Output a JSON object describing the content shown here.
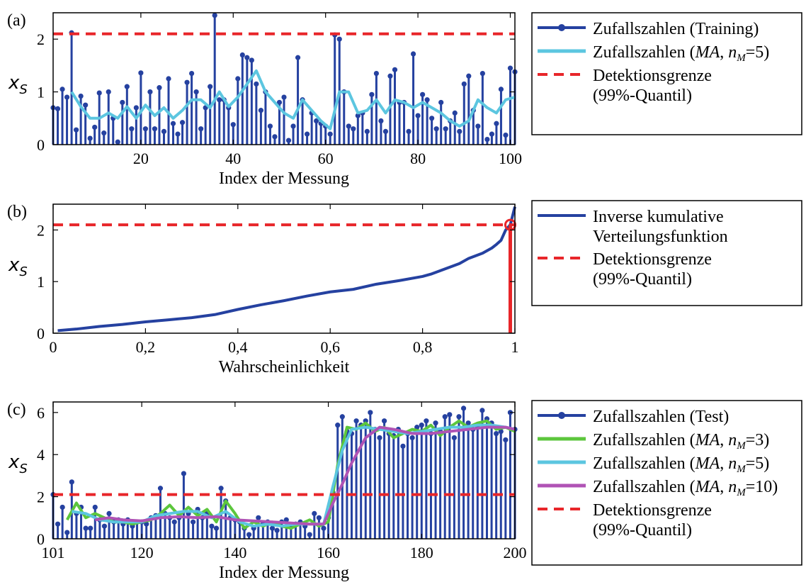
{
  "colors": {
    "stem": "#2541a0",
    "ma5": "#5cc6e0",
    "ma3": "#5cc63c",
    "ma10": "#b053b5",
    "threshold": "#e8262a"
  },
  "chart_data": [
    {
      "type": "stem",
      "panel_label": "(a)",
      "ylabel_main": "x",
      "ylabel_sub": "S",
      "xlabel": "Index der Messung",
      "xlim": [
        1,
        101
      ],
      "ylim": [
        0,
        2.5
      ],
      "xticks": [
        20,
        40,
        60,
        80,
        100
      ],
      "yticks": [
        0,
        1,
        2
      ],
      "threshold": 2.1,
      "x": [
        1,
        2,
        3,
        4,
        5,
        6,
        7,
        8,
        9,
        10,
        11,
        12,
        13,
        14,
        15,
        16,
        17,
        18,
        19,
        20,
        21,
        22,
        23,
        24,
        25,
        26,
        27,
        28,
        29,
        30,
        31,
        32,
        33,
        34,
        35,
        36,
        37,
        38,
        39,
        40,
        41,
        42,
        43,
        44,
        45,
        46,
        47,
        48,
        49,
        50,
        51,
        52,
        53,
        54,
        55,
        56,
        57,
        58,
        59,
        60,
        61,
        62,
        63,
        64,
        65,
        66,
        67,
        68,
        69,
        70,
        71,
        72,
        73,
        74,
        75,
        76,
        77,
        78,
        79,
        80,
        81,
        82,
        83,
        84,
        85,
        86,
        87,
        88,
        89,
        90,
        91,
        92,
        93,
        94,
        95,
        96,
        97,
        98,
        99,
        100,
        101
      ],
      "values": [
        0.7,
        0.68,
        1.05,
        0.9,
        2.12,
        0.28,
        0.92,
        0.75,
        0.12,
        0.33,
        0.98,
        0.22,
        1.0,
        0.5,
        0.05,
        0.8,
        1.1,
        0.3,
        0.7,
        1.36,
        0.3,
        1.0,
        0.3,
        1.08,
        0.25,
        1.25,
        0.4,
        0.2,
        0.42,
        1.18,
        1.35,
        1.0,
        0.3,
        0.7,
        1.1,
        2.45,
        0.85,
        0.85,
        0.7,
        0.38,
        1.25,
        1.7,
        1.65,
        1.6,
        1.15,
        0.65,
        1.0,
        0.35,
        0.15,
        0.8,
        0.9,
        0.08,
        0.35,
        1.65,
        0.85,
        0.2,
        0.6,
        0.45,
        0.4,
        0.35,
        0.2,
        2.08,
        2.0,
        1.0,
        0.35,
        0.3,
        0.55,
        0.6,
        0.25,
        0.95,
        1.35,
        0.45,
        0.25,
        1.3,
        1.42,
        0.8,
        0.8,
        0.25,
        1.72,
        0.55,
        0.95,
        0.85,
        0.5,
        0.3,
        0.8,
        0.3,
        0.45,
        0.6,
        0.25,
        1.15,
        1.3,
        0.65,
        0.35,
        1.35,
        0.1,
        0.2,
        0.4,
        1.05,
        0.18,
        1.45,
        1.38
      ],
      "series": [
        {
          "name": "Zufallszahlen (MA, n_M=5)",
          "x": [
            5,
            7,
            9,
            11,
            13,
            15,
            17,
            19,
            21,
            23,
            25,
            27,
            29,
            31,
            33,
            35,
            37,
            39,
            41,
            43,
            45,
            47,
            49,
            51,
            53,
            55,
            57,
            59,
            61,
            63,
            65,
            67,
            69,
            71,
            73,
            75,
            77,
            79,
            81,
            83,
            85,
            87,
            89,
            91,
            93,
            95,
            97,
            99,
            101
          ],
          "values": [
            1.0,
            0.72,
            0.5,
            0.5,
            0.6,
            0.5,
            0.72,
            0.5,
            0.75,
            0.55,
            0.7,
            0.5,
            0.65,
            0.85,
            0.85,
            0.7,
            1.0,
            0.72,
            0.9,
            1.15,
            1.4,
            1.0,
            0.8,
            0.6,
            0.5,
            0.85,
            0.65,
            0.45,
            0.3,
            1.0,
            1.0,
            0.6,
            0.65,
            0.85,
            0.6,
            0.85,
            0.8,
            0.7,
            0.8,
            0.7,
            0.6,
            0.45,
            0.35,
            0.45,
            0.85,
            0.7,
            0.6,
            0.85,
            0.9
          ]
        }
      ],
      "legend": [
        {
          "label": "Zufallszahlen (Training)",
          "style": "stem"
        },
        {
          "label": "Zufallszahlen (MA, n_M=5)",
          "style": "ma5"
        },
        {
          "label": "Detektionsgrenze (99%-Quantil)",
          "style": "threshold"
        }
      ]
    },
    {
      "type": "line",
      "panel_label": "(b)",
      "ylabel_main": "x",
      "ylabel_sub": "S",
      "xlabel": "Wahrscheinlichkeit",
      "xlim": [
        0,
        1
      ],
      "ylim": [
        0,
        2.5
      ],
      "xticks": [
        0,
        0.2,
        0.4,
        0.6,
        0.8,
        1
      ],
      "xtick_labels": [
        "0",
        "0,2",
        "0,4",
        "0,6",
        "0,8",
        "1"
      ],
      "yticks": [
        0,
        1,
        2
      ],
      "threshold": 2.1,
      "quantile_marker": {
        "x": 0.99,
        "y": 2.1
      },
      "series": [
        {
          "name": "Inverse kumulative Verteilungsfunktion",
          "x": [
            0.01,
            0.05,
            0.1,
            0.15,
            0.2,
            0.25,
            0.3,
            0.35,
            0.4,
            0.45,
            0.5,
            0.55,
            0.6,
            0.65,
            0.7,
            0.75,
            0.8,
            0.82,
            0.85,
            0.88,
            0.9,
            0.93,
            0.95,
            0.96,
            0.97,
            0.98,
            0.99,
            1.0
          ],
          "values": [
            0.05,
            0.08,
            0.13,
            0.17,
            0.22,
            0.26,
            0.3,
            0.36,
            0.46,
            0.55,
            0.63,
            0.72,
            0.8,
            0.85,
            0.95,
            1.02,
            1.1,
            1.15,
            1.25,
            1.35,
            1.45,
            1.55,
            1.65,
            1.72,
            1.8,
            2.0,
            2.1,
            2.45
          ]
        }
      ],
      "legend": [
        {
          "label": "Inverse kumulative Verteilungsfunktion",
          "style": "stem-line"
        },
        {
          "label": "Detektionsgrenze (99%-Quantil)",
          "style": "threshold"
        }
      ]
    },
    {
      "type": "stem",
      "panel_label": "(c)",
      "ylabel_main": "x",
      "ylabel_sub": "S",
      "xlabel": "Index der Messung",
      "xlim": [
        101,
        200
      ],
      "ylim": [
        0,
        6.5
      ],
      "xticks": [
        101,
        120,
        140,
        160,
        180,
        200
      ],
      "yticks": [
        0,
        2,
        4,
        6
      ],
      "threshold": 2.1,
      "x": [
        101,
        102,
        103,
        104,
        105,
        106,
        107,
        108,
        109,
        110,
        111,
        112,
        113,
        114,
        115,
        116,
        117,
        118,
        119,
        120,
        121,
        122,
        123,
        124,
        125,
        126,
        127,
        128,
        129,
        130,
        131,
        132,
        133,
        134,
        135,
        136,
        137,
        138,
        139,
        140,
        141,
        142,
        143,
        144,
        145,
        146,
        147,
        148,
        149,
        150,
        151,
        152,
        153,
        154,
        155,
        156,
        157,
        158,
        159,
        160,
        161,
        162,
        163,
        164,
        165,
        166,
        167,
        168,
        169,
        170,
        171,
        172,
        173,
        174,
        175,
        176,
        177,
        178,
        179,
        180,
        181,
        182,
        183,
        184,
        185,
        186,
        187,
        188,
        189,
        190,
        191,
        192,
        193,
        194,
        195,
        196,
        197,
        198,
        199,
        200
      ],
      "values": [
        2.1,
        0.7,
        1.5,
        0.3,
        2.7,
        1.2,
        1.5,
        0.5,
        0.5,
        1.5,
        0.9,
        0.6,
        1.2,
        0.8,
        0.9,
        0.7,
        0.9,
        0.6,
        0.8,
        0.8,
        0.7,
        1.0,
        1.1,
        2.4,
        1.2,
        1.0,
        0.8,
        1.0,
        3.1,
        1.2,
        0.8,
        1.4,
        1.0,
        1.2,
        0.6,
        0.5,
        2.4,
        1.8,
        1.0,
        0.9,
        0.8,
        0.5,
        0.2,
        0.5,
        1.0,
        0.7,
        0.8,
        0.5,
        0.4,
        0.8,
        0.9,
        0.6,
        0.7,
        0.8,
        0.6,
        0.2,
        1.2,
        1.0,
        0.5,
        1.0,
        2.2,
        5.4,
        5.8,
        5.1,
        5.0,
        5.6,
        5.4,
        5.6,
        6.0,
        5.2,
        4.8,
        5.6,
        5.0,
        4.9,
        5.2,
        4.4,
        5.0,
        4.8,
        5.3,
        5.4,
        5.6,
        5.0,
        5.5,
        5.1,
        5.8,
        5.9,
        4.8,
        5.8,
        6.2,
        5.5,
        5.2,
        5.3,
        6.1,
        5.7,
        5.5,
        5.0,
        5.1,
        4.7,
        6.0,
        5.2
      ],
      "series": [
        {
          "name": "Zufallszahlen (MA, n_M=3)",
          "x": [
            104,
            106,
            108,
            110,
            112,
            114,
            116,
            118,
            120,
            122,
            124,
            126,
            128,
            130,
            132,
            134,
            136,
            138,
            140,
            142,
            144,
            146,
            148,
            150,
            152,
            154,
            156,
            158,
            160,
            162,
            164,
            166,
            168,
            170,
            172,
            174,
            176,
            178,
            180,
            182,
            184,
            186,
            188,
            190,
            192,
            194,
            196,
            198,
            200
          ],
          "values": [
            0.9,
            1.7,
            1.0,
            1.2,
            1.0,
            0.8,
            0.8,
            0.7,
            0.8,
            0.9,
            1.2,
            1.6,
            1.1,
            1.5,
            1.1,
            1.4,
            0.8,
            1.8,
            1.2,
            0.5,
            0.8,
            0.6,
            0.8,
            0.6,
            0.5,
            0.7,
            0.9,
            0.6,
            0.8,
            3.5,
            5.3,
            5.2,
            5.5,
            5.1,
            5.3,
            4.8,
            5.0,
            5.2,
            5.1,
            5.4,
            4.9,
            5.3,
            5.6,
            5.3,
            5.5,
            5.6,
            5.2,
            5.3,
            5.1
          ]
        },
        {
          "name": "Zufallszahlen (MA, n_M=5)",
          "x": [
            105,
            108,
            111,
            114,
            117,
            120,
            123,
            126,
            129,
            132,
            135,
            138,
            141,
            144,
            147,
            150,
            153,
            156,
            159,
            161,
            163,
            165,
            168,
            171,
            174,
            177,
            180,
            183,
            186,
            189,
            192,
            195,
            198,
            200
          ],
          "values": [
            1.3,
            1.2,
            0.9,
            0.8,
            0.8,
            0.8,
            1.1,
            1.2,
            1.3,
            1.3,
            1.0,
            1.3,
            0.8,
            0.6,
            0.7,
            0.6,
            0.7,
            0.7,
            0.7,
            2.5,
            4.2,
            5.2,
            5.3,
            5.2,
            5.1,
            5.0,
            5.1,
            5.2,
            5.3,
            5.3,
            5.4,
            5.4,
            5.3,
            5.2
          ]
        },
        {
          "name": "Zufallszahlen (MA, n_M=10)",
          "x": [
            110,
            113,
            116,
            120,
            124,
            128,
            132,
            136,
            140,
            144,
            148,
            152,
            156,
            159,
            161,
            163,
            165,
            168,
            171,
            174,
            178,
            182,
            186,
            190,
            194,
            198,
            200
          ],
          "values": [
            0.9,
            1.0,
            0.9,
            0.85,
            1.0,
            1.05,
            1.0,
            1.05,
            0.9,
            0.85,
            0.8,
            0.75,
            0.7,
            0.7,
            1.7,
            2.6,
            3.6,
            4.8,
            5.3,
            5.2,
            5.0,
            5.0,
            5.1,
            5.2,
            5.3,
            5.3,
            5.2
          ]
        }
      ],
      "legend": [
        {
          "label": "Zufallszahlen (Test)",
          "style": "stem"
        },
        {
          "label": "Zufallszahlen (MA, n_M=3)",
          "style": "ma3"
        },
        {
          "label": "Zufallszahlen (MA, n_M=5)",
          "style": "ma5"
        },
        {
          "label": "Zufallszahlen (MA, n_M=10)",
          "style": "ma10"
        },
        {
          "label": "Detektionsgrenze (99%-Quantil)",
          "style": "threshold"
        }
      ]
    }
  ]
}
